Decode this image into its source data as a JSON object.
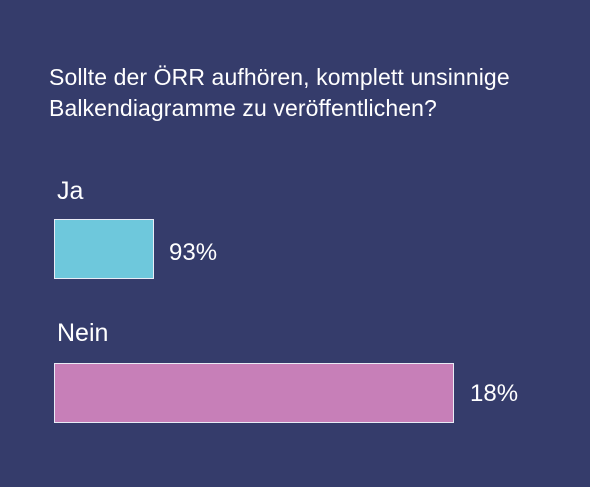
{
  "chart_data": {
    "type": "bar",
    "orientation": "horizontal",
    "title": "Sollte der ÖRR aufhören, komplett unsinnige Balkendiagramme zu veröffentlichen?",
    "categories": [
      "Ja",
      "Nein"
    ],
    "values": [
      93,
      18
    ],
    "value_labels": [
      "93%",
      "18%"
    ],
    "colors": [
      "#6ec8dc",
      "#c77fb8"
    ],
    "grid": false,
    "legend": "none"
  }
}
